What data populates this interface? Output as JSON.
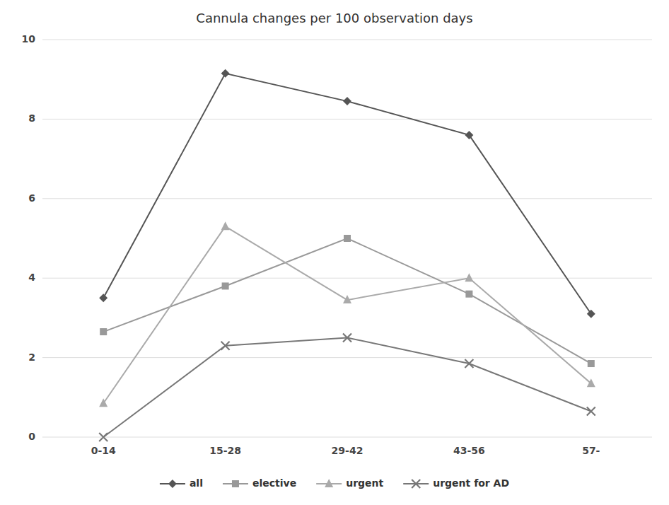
{
  "chart_data": {
    "type": "line",
    "title": "Cannula changes per 100 observation days",
    "categories": [
      "0-14",
      "15-28",
      "29-42",
      "43-56",
      "57-"
    ],
    "series": [
      {
        "name": "all",
        "color": "#555555",
        "marker": "diamond",
        "values": [
          3.5,
          9.15,
          8.45,
          7.6,
          3.1
        ]
      },
      {
        "name": "elective",
        "color": "#999999",
        "marker": "square",
        "values": [
          2.65,
          3.8,
          5.0,
          3.6,
          1.85
        ]
      },
      {
        "name": "urgent",
        "color": "#aaaaaa",
        "marker": "triangle",
        "values": [
          0.85,
          5.3,
          3.45,
          4.0,
          1.35
        ]
      },
      {
        "name": "urgent for AD",
        "color": "#777777",
        "marker": "x",
        "values": [
          0.0,
          2.3,
          2.5,
          1.85,
          0.65
        ]
      }
    ],
    "ylim": [
      0,
      10
    ],
    "yticks": [
      0,
      2,
      4,
      6,
      8,
      10
    ],
    "grid": true,
    "legend": "bottom"
  }
}
